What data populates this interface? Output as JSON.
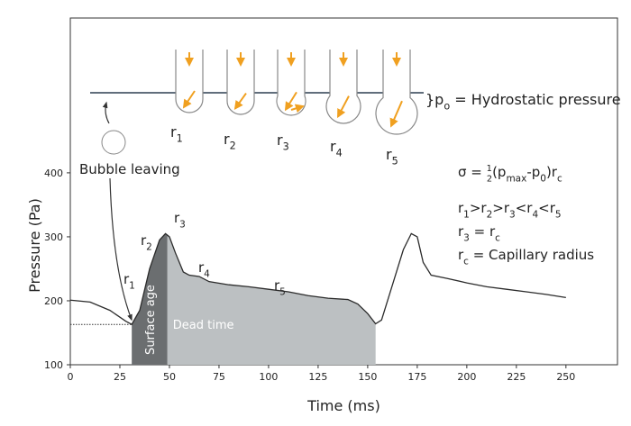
{
  "chart_data": {
    "type": "line",
    "x_label": "Time (ms)",
    "y_label": "Pressure (Pa)",
    "x": [
      0,
      10,
      20,
      28,
      31,
      35,
      40,
      45,
      48,
      50,
      53,
      57,
      60,
      65,
      70,
      80,
      90,
      100,
      110,
      120,
      130,
      140,
      145,
      150,
      154,
      157,
      162,
      168,
      172,
      175,
      178,
      182,
      190,
      200,
      210,
      220,
      230,
      240,
      250
    ],
    "series": [
      {
        "color": "#2b2b2b",
        "values": [
          201,
          198,
          185,
          168,
          163,
          185,
          250,
          295,
          305,
          300,
          275,
          245,
          240,
          238,
          230,
          225,
          222,
          218,
          214,
          208,
          204,
          202,
          195,
          180,
          164,
          170,
          220,
          280,
          305,
          300,
          260,
          240,
          235,
          228,
          222,
          218,
          214,
          210,
          205
        ]
      }
    ],
    "xlim": [
      0,
      276
    ],
    "ylim": [
      100,
      642
    ],
    "xticks": [
      0,
      25,
      50,
      75,
      100,
      125,
      150,
      175,
      200,
      225,
      250
    ],
    "yticks": [
      100,
      200,
      300,
      400
    ],
    "shaded_regions": [
      {
        "label": "Surface age",
        "range": [
          31,
          49
        ],
        "color": "#6b6e70"
      },
      {
        "label": "Dead time",
        "range": [
          49,
          154
        ],
        "color": "#bcc0c2"
      }
    ],
    "baseline": {
      "x": [
        0,
        31
      ],
      "y": 163
    },
    "annotations": [
      {
        "segments": [
          {
            "text": "r"
          },
          {
            "text": "1",
            "pos": "sub"
          }
        ]
      },
      {
        "segments": [
          {
            "text": "r"
          },
          {
            "text": "2",
            "pos": "sub"
          }
        ]
      },
      {
        "segments": [
          {
            "text": "r"
          },
          {
            "text": "3",
            "pos": "sub"
          }
        ]
      },
      {
        "segments": [
          {
            "text": "r"
          },
          {
            "text": "4",
            "pos": "sub"
          }
        ]
      },
      {
        "segments": [
          {
            "text": "r"
          },
          {
            "text": "5",
            "pos": "sub"
          }
        ]
      }
    ],
    "formulas": [
      {
        "segments": [
          {
            "text": "σ = "
          },
          {
            "text": "1",
            "pos": "frac-top"
          },
          {
            "text": "2",
            "pos": "frac-bottom"
          },
          {
            "text": "(p"
          },
          {
            "text": "max",
            "pos": "sub"
          },
          {
            "text": "-p"
          },
          {
            "text": "0",
            "pos": "sub"
          },
          {
            "text": ")r"
          },
          {
            "text": "c",
            "pos": "sub"
          }
        ]
      },
      {
        "segments": [
          {
            "text": "r"
          },
          {
            "text": "1",
            "pos": "sub"
          },
          {
            "text": ">r"
          },
          {
            "text": "2",
            "pos": "sub"
          },
          {
            "text": ">r"
          },
          {
            "text": "3",
            "pos": "sub"
          },
          {
            "text": "<r"
          },
          {
            "text": "4",
            "pos": "sub"
          },
          {
            "text": "<r"
          },
          {
            "text": "5",
            "pos": "sub"
          }
        ]
      },
      {
        "segments": [
          {
            "text": "r"
          },
          {
            "text": "3",
            "pos": "sub"
          },
          {
            "text": " = r"
          },
          {
            "text": "c",
            "pos": "sub"
          }
        ]
      },
      {
        "segments": [
          {
            "text": "r"
          },
          {
            "text": "c",
            "pos": "sub"
          },
          {
            "text": " = Capillary radius"
          }
        ]
      }
    ]
  },
  "diagram": {
    "bubble_leaving": "Bubble leaving",
    "hydrostatic": {
      "segments": [
        {
          "text": "}p"
        },
        {
          "text": "o",
          "pos": "sub"
        },
        {
          "text": " = Hydrostatic pressure"
        }
      ]
    },
    "radius_labels": [
      {
        "segments": [
          {
            "text": "r"
          },
          {
            "text": "1",
            "pos": "sub"
          }
        ]
      },
      {
        "segments": [
          {
            "text": "r"
          },
          {
            "text": "2",
            "pos": "sub"
          }
        ]
      },
      {
        "segments": [
          {
            "text": "r"
          },
          {
            "text": "3",
            "pos": "sub"
          }
        ]
      },
      {
        "segments": [
          {
            "text": "r"
          },
          {
            "text": "4",
            "pos": "sub"
          }
        ]
      },
      {
        "segments": [
          {
            "text": "r"
          },
          {
            "text": "5",
            "pos": "sub"
          }
        ]
      }
    ]
  }
}
